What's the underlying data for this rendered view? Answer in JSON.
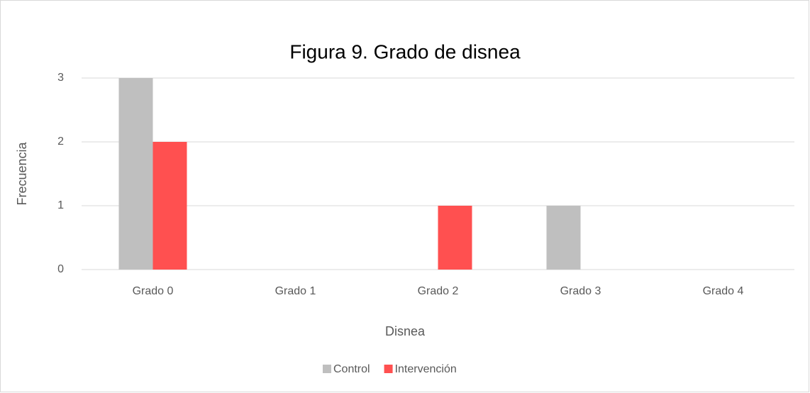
{
  "chart_data": {
    "type": "bar",
    "title": "Figura 9. Grado de disnea",
    "x_label": "Disnea",
    "y_label": "Frecuencia",
    "categories": [
      "Grado 0",
      "Grado 1",
      "Grado 2",
      "Grado 3",
      "Grado 4"
    ],
    "series": [
      {
        "name": "Control",
        "color": "#bfbfbf",
        "values": [
          3,
          0,
          0,
          1,
          0
        ]
      },
      {
        "name": "Intervención",
        "color": "#ff5050",
        "values": [
          2,
          0,
          1,
          0,
          0
        ]
      }
    ],
    "ylim": [
      0,
      3
    ],
    "yticks": [
      0,
      1,
      2,
      3
    ],
    "grid": true,
    "legend": "bottom"
  }
}
